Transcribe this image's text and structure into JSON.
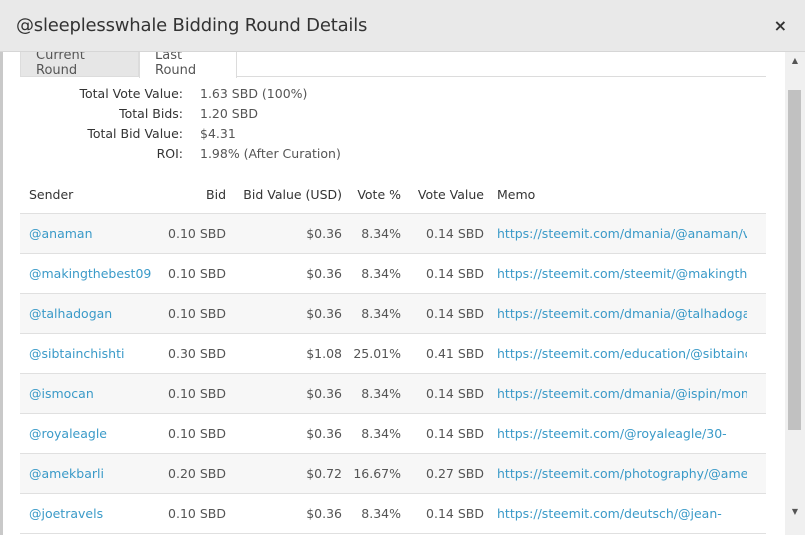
{
  "header": {
    "title": "@sleeplesswhale Bidding Round Details",
    "close_label": "×"
  },
  "tabs": [
    {
      "label": "Current Round",
      "active": false
    },
    {
      "label": "Last Round",
      "active": true
    }
  ],
  "summary": [
    {
      "label": "Total Vote Value:",
      "value": "1.63 SBD (100%)"
    },
    {
      "label": "Total Bids:",
      "value": "1.20 SBD"
    },
    {
      "label": "Total Bid Value:",
      "value": "$4.31"
    },
    {
      "label": "ROI:",
      "value": "1.98% (After Curation)"
    }
  ],
  "table": {
    "headers": {
      "sender": "Sender",
      "bid": "Bid",
      "bid_value": "Bid Value (USD)",
      "vote_pct": "Vote %",
      "vote_value": "Vote Value",
      "memo": "Memo"
    },
    "rows": [
      {
        "sender": "@anaman",
        "bid": "0.10 SBD",
        "bid_value": "$0.36",
        "vote_pct": "8.34%",
        "vote_value": "0.14 SBD",
        "memo": "https://steemit.com/dmania/@anaman/va"
      },
      {
        "sender": "@makingthebest09",
        "bid": "0.10 SBD",
        "bid_value": "$0.36",
        "vote_pct": "8.34%",
        "vote_value": "0.14 SBD",
        "memo": "https://steemit.com/steemit/@makingthel"
      },
      {
        "sender": "@talhadogan",
        "bid": "0.10 SBD",
        "bid_value": "$0.36",
        "vote_pct": "8.34%",
        "vote_value": "0.14 SBD",
        "memo": "https://steemit.com/dmania/@talhadogan"
      },
      {
        "sender": "@sibtainchishti",
        "bid": "0.30 SBD",
        "bid_value": "$1.08",
        "vote_pct": "25.01%",
        "vote_value": "0.41 SBD",
        "memo": "https://steemit.com/education/@sibtaincl"
      },
      {
        "sender": "@ismocan",
        "bid": "0.10 SBD",
        "bid_value": "$0.36",
        "vote_pct": "8.34%",
        "vote_value": "0.14 SBD",
        "memo": "https://steemit.com/dmania/@ispin/mone"
      },
      {
        "sender": "@royaleagle",
        "bid": "0.10 SBD",
        "bid_value": "$0.36",
        "vote_pct": "8.34%",
        "vote_value": "0.14 SBD",
        "memo": "https://steemit.com/@royaleagle/30-"
      },
      {
        "sender": "@amekbarli",
        "bid": "0.20 SBD",
        "bid_value": "$0.72",
        "vote_pct": "16.67%",
        "vote_value": "0.27 SBD",
        "memo": "https://steemit.com/photography/@amek"
      },
      {
        "sender": "@joetravels",
        "bid": "0.10 SBD",
        "bid_value": "$0.36",
        "vote_pct": "8.34%",
        "vote_value": "0.14 SBD",
        "memo": "https://steemit.com/deutsch/@jean-"
      }
    ]
  },
  "scrollbar": {
    "up_icon": "▲",
    "down_icon": "▼"
  }
}
